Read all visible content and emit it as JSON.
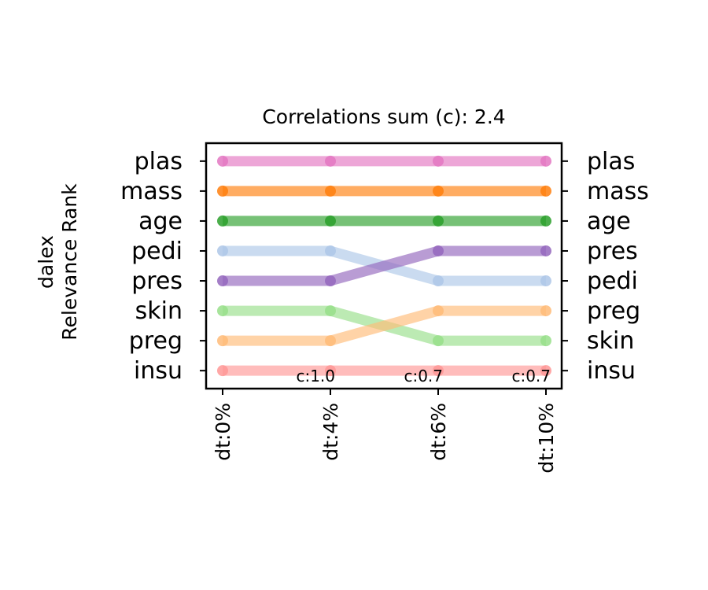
{
  "chart_data": {
    "type": "line",
    "title": "Correlations sum (c): 2.4",
    "ylabel_lines": [
      "dalex",
      "Relevance Rank"
    ],
    "x": [
      "dt:0%",
      "dt:4%",
      "dt:6%",
      "dt:10%"
    ],
    "left_labels": [
      "plas",
      "mass",
      "age",
      "pedi",
      "pres",
      "skin",
      "preg",
      "insu"
    ],
    "right_labels": [
      "plas",
      "mass",
      "age",
      "pres",
      "pedi",
      "preg",
      "skin",
      "insu"
    ],
    "annotations": [
      "c:1.0",
      "c:0.7",
      "c:0.7"
    ],
    "ylim": [
      0.4,
      8.6
    ],
    "series": [
      {
        "name": "plas",
        "ranks": [
          8,
          8,
          8,
          8
        ],
        "color": "#e377c2"
      },
      {
        "name": "mass",
        "ranks": [
          7,
          7,
          7,
          7
        ],
        "color": "#ff7f0e"
      },
      {
        "name": "age",
        "ranks": [
          6,
          6,
          6,
          6
        ],
        "color": "#2ca02c"
      },
      {
        "name": "pedi",
        "ranks": [
          5,
          5,
          4,
          4
        ],
        "color": "#aec7e8"
      },
      {
        "name": "pres",
        "ranks": [
          4,
          4,
          5,
          5
        ],
        "color": "#9467bd"
      },
      {
        "name": "skin",
        "ranks": [
          3,
          3,
          2,
          2
        ],
        "color": "#98df8a"
      },
      {
        "name": "preg",
        "ranks": [
          2,
          2,
          3,
          3
        ],
        "color": "#ffbb78"
      },
      {
        "name": "insu",
        "ranks": [
          1,
          1,
          1,
          1
        ],
        "color": "#ff9896"
      }
    ]
  }
}
